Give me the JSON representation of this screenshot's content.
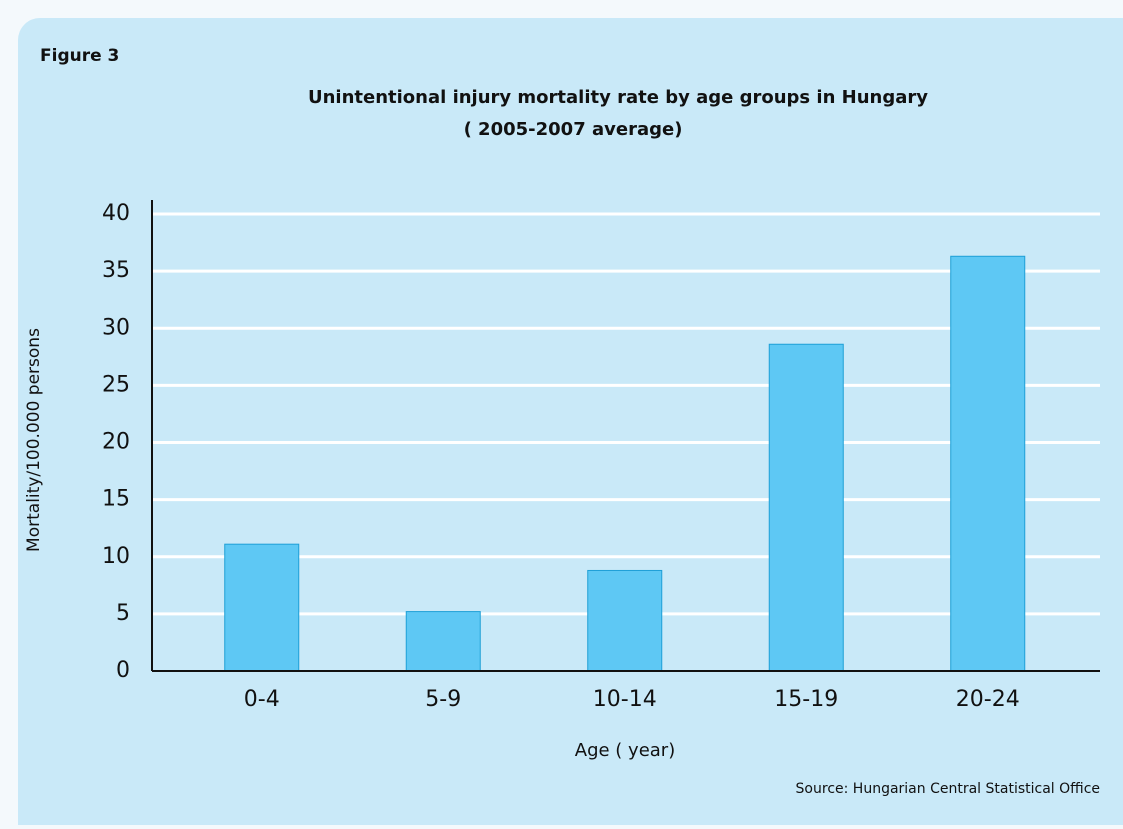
{
  "figure_label": "Figure 3",
  "chart_data": {
    "type": "bar",
    "title": "Unintentional injury mortality rate by age groups in Hungary",
    "subtitle": "( 2005-2007 average)",
    "x_label": "Age ( year)",
    "y_label": "Mortality/100.000 persons",
    "categories": [
      "0-4",
      "5-9",
      "10-14",
      "15-19",
      "20-24"
    ],
    "values": [
      11.1,
      5.2,
      8.8,
      28.6,
      36.3
    ],
    "color": "#5ec8f4",
    "ylim": [
      0,
      40
    ],
    "yticks": [
      0,
      5,
      10,
      15,
      20,
      25,
      30,
      35,
      40
    ],
    "grid": true
  },
  "source": "Source: Hungarian Central Statistical Office"
}
